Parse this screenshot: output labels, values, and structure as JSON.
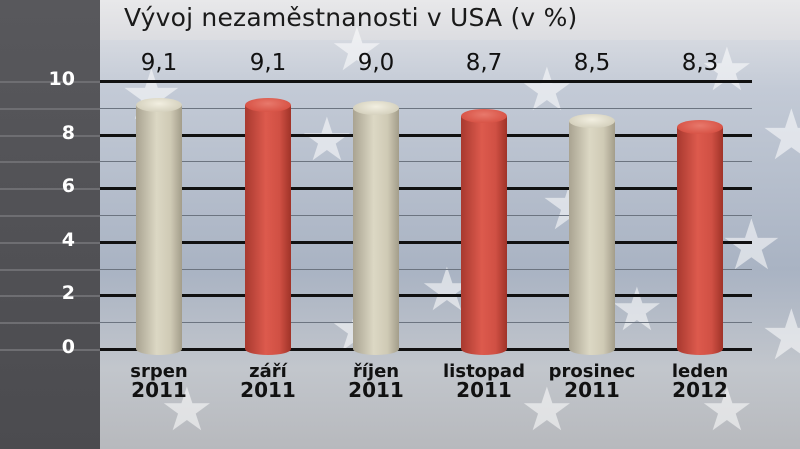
{
  "title": "Vývoj nezaměstnanosti v USA (v %)",
  "colors": {
    "beige_bar": "#d6d2bf",
    "red_bar": "#d85447",
    "left_panel": "#525256",
    "background": "#b4bdcc"
  },
  "y_axis": {
    "ticks": [
      "0",
      "2",
      "4",
      "6",
      "8",
      "10"
    ]
  },
  "bars": [
    {
      "value_label": "9,1",
      "month": "srpen",
      "year": "2011",
      "color": "beige"
    },
    {
      "value_label": "9,1",
      "month": "září",
      "year": "2011",
      "color": "red"
    },
    {
      "value_label": "9,0",
      "month": "říjen",
      "year": "2011",
      "color": "beige"
    },
    {
      "value_label": "8,7",
      "month": "listopad",
      "year": "2011",
      "color": "red"
    },
    {
      "value_label": "8,5",
      "month": "prosinec",
      "year": "2011",
      "color": "beige"
    },
    {
      "value_label": "8,3",
      "month": "leden",
      "year": "2012",
      "color": "red"
    }
  ],
  "chart_data": {
    "type": "bar",
    "title": "Vývoj nezaměstnanosti v USA (v %)",
    "categories": [
      "srpen 2011",
      "září 2011",
      "říjen 2011",
      "listopad 2011",
      "prosinec 2011",
      "leden 2012"
    ],
    "values": [
      9.1,
      9.1,
      9.0,
      8.7,
      8.5,
      8.3
    ],
    "data_labels": [
      "9,1",
      "9,1",
      "9,0",
      "8,7",
      "8,5",
      "8,3"
    ],
    "xlabel": "",
    "ylabel": "",
    "ylim": [
      0,
      10
    ],
    "yticks": [
      0,
      2,
      4,
      6,
      8,
      10
    ],
    "grid": true,
    "legend": null,
    "bar_colors": [
      "#d6d2bf",
      "#d85447",
      "#d6d2bf",
      "#d85447",
      "#d6d2bf",
      "#d85447"
    ]
  }
}
